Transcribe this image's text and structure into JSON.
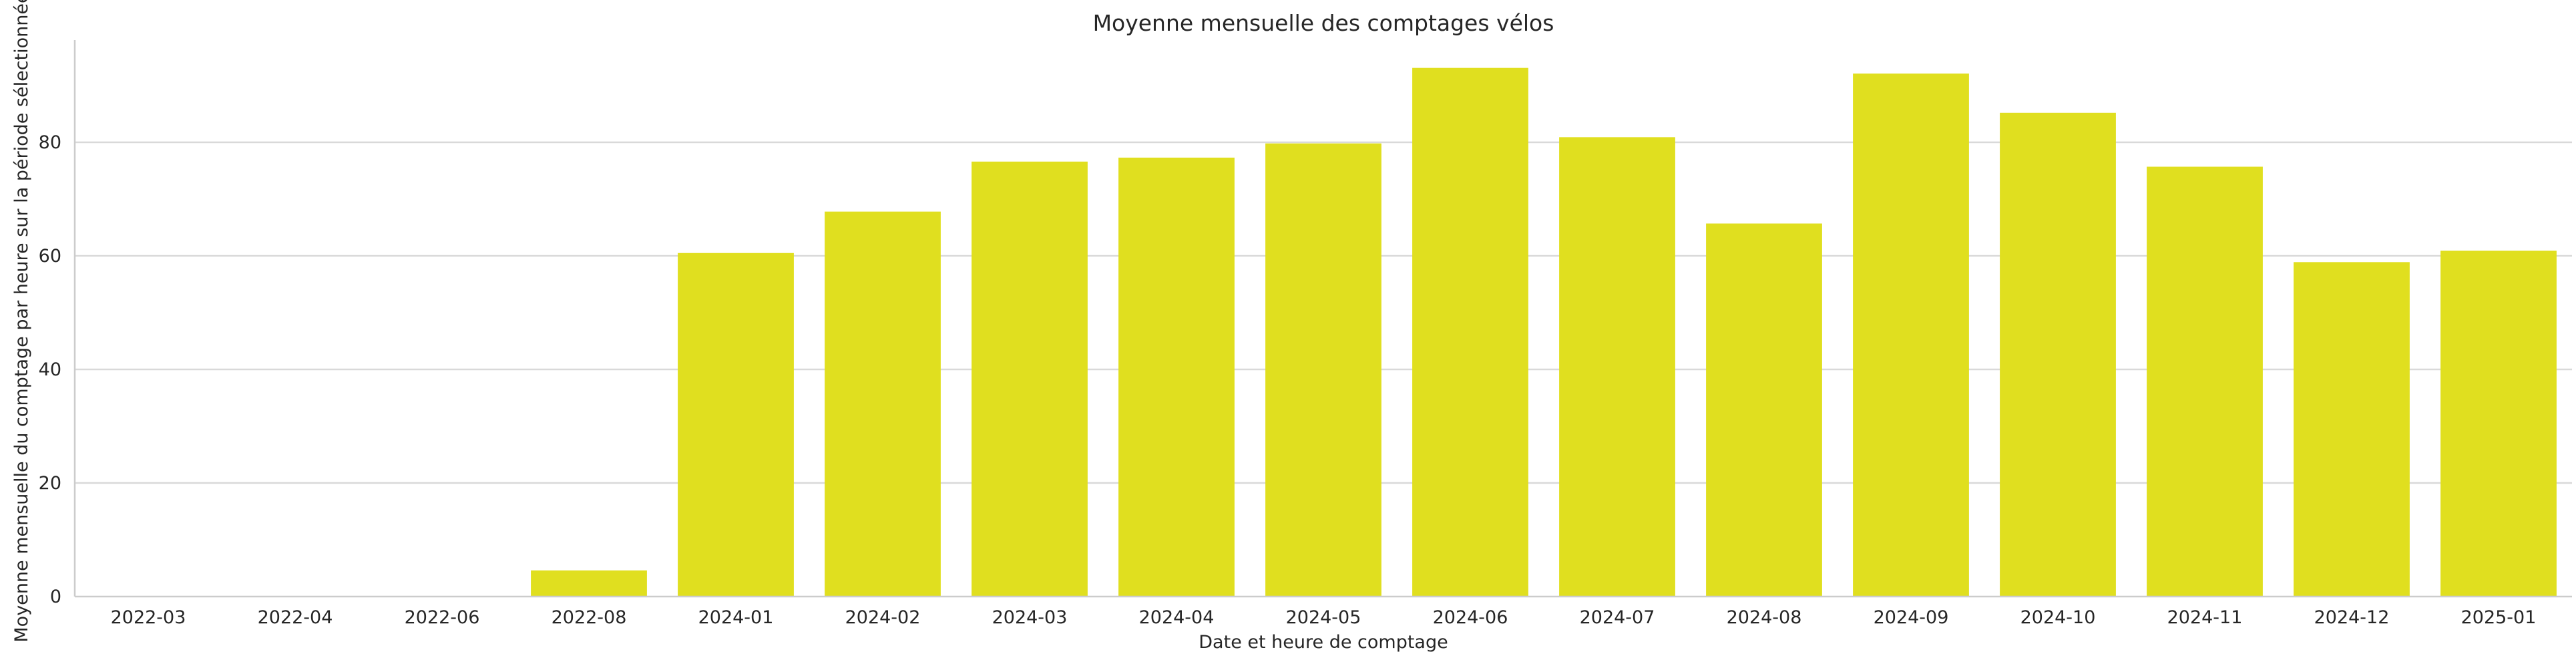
{
  "chart_data": {
    "type": "bar",
    "title": "Moyenne mensuelle des comptages vélos",
    "xlabel": "Date et heure de comptage",
    "ylabel": "Moyenne mensuelle du comptage par heure sur la période sélectionnée",
    "categories": [
      "2022-03",
      "2022-04",
      "2022-06",
      "2022-08",
      "2024-01",
      "2024-02",
      "2024-03",
      "2024-04",
      "2024-05",
      "2024-06",
      "2024-07",
      "2024-08",
      "2024-09",
      "2024-10",
      "2024-11",
      "2024-12",
      "2025-01"
    ],
    "values": [
      0.1,
      0.1,
      0.1,
      4.6,
      60.5,
      67.8,
      76.6,
      77.3,
      79.8,
      93.1,
      80.9,
      65.7,
      92.1,
      85.2,
      75.7,
      58.9,
      60.9
    ],
    "ylim": [
      0,
      98
    ],
    "yticks": [
      0,
      20,
      40,
      60,
      80
    ],
    "grid": "horizontal",
    "bar_color": "#e0df1f",
    "grid_color": "#d9d9d9",
    "axis_color": "#cccccc",
    "text_color": "#262626"
  }
}
